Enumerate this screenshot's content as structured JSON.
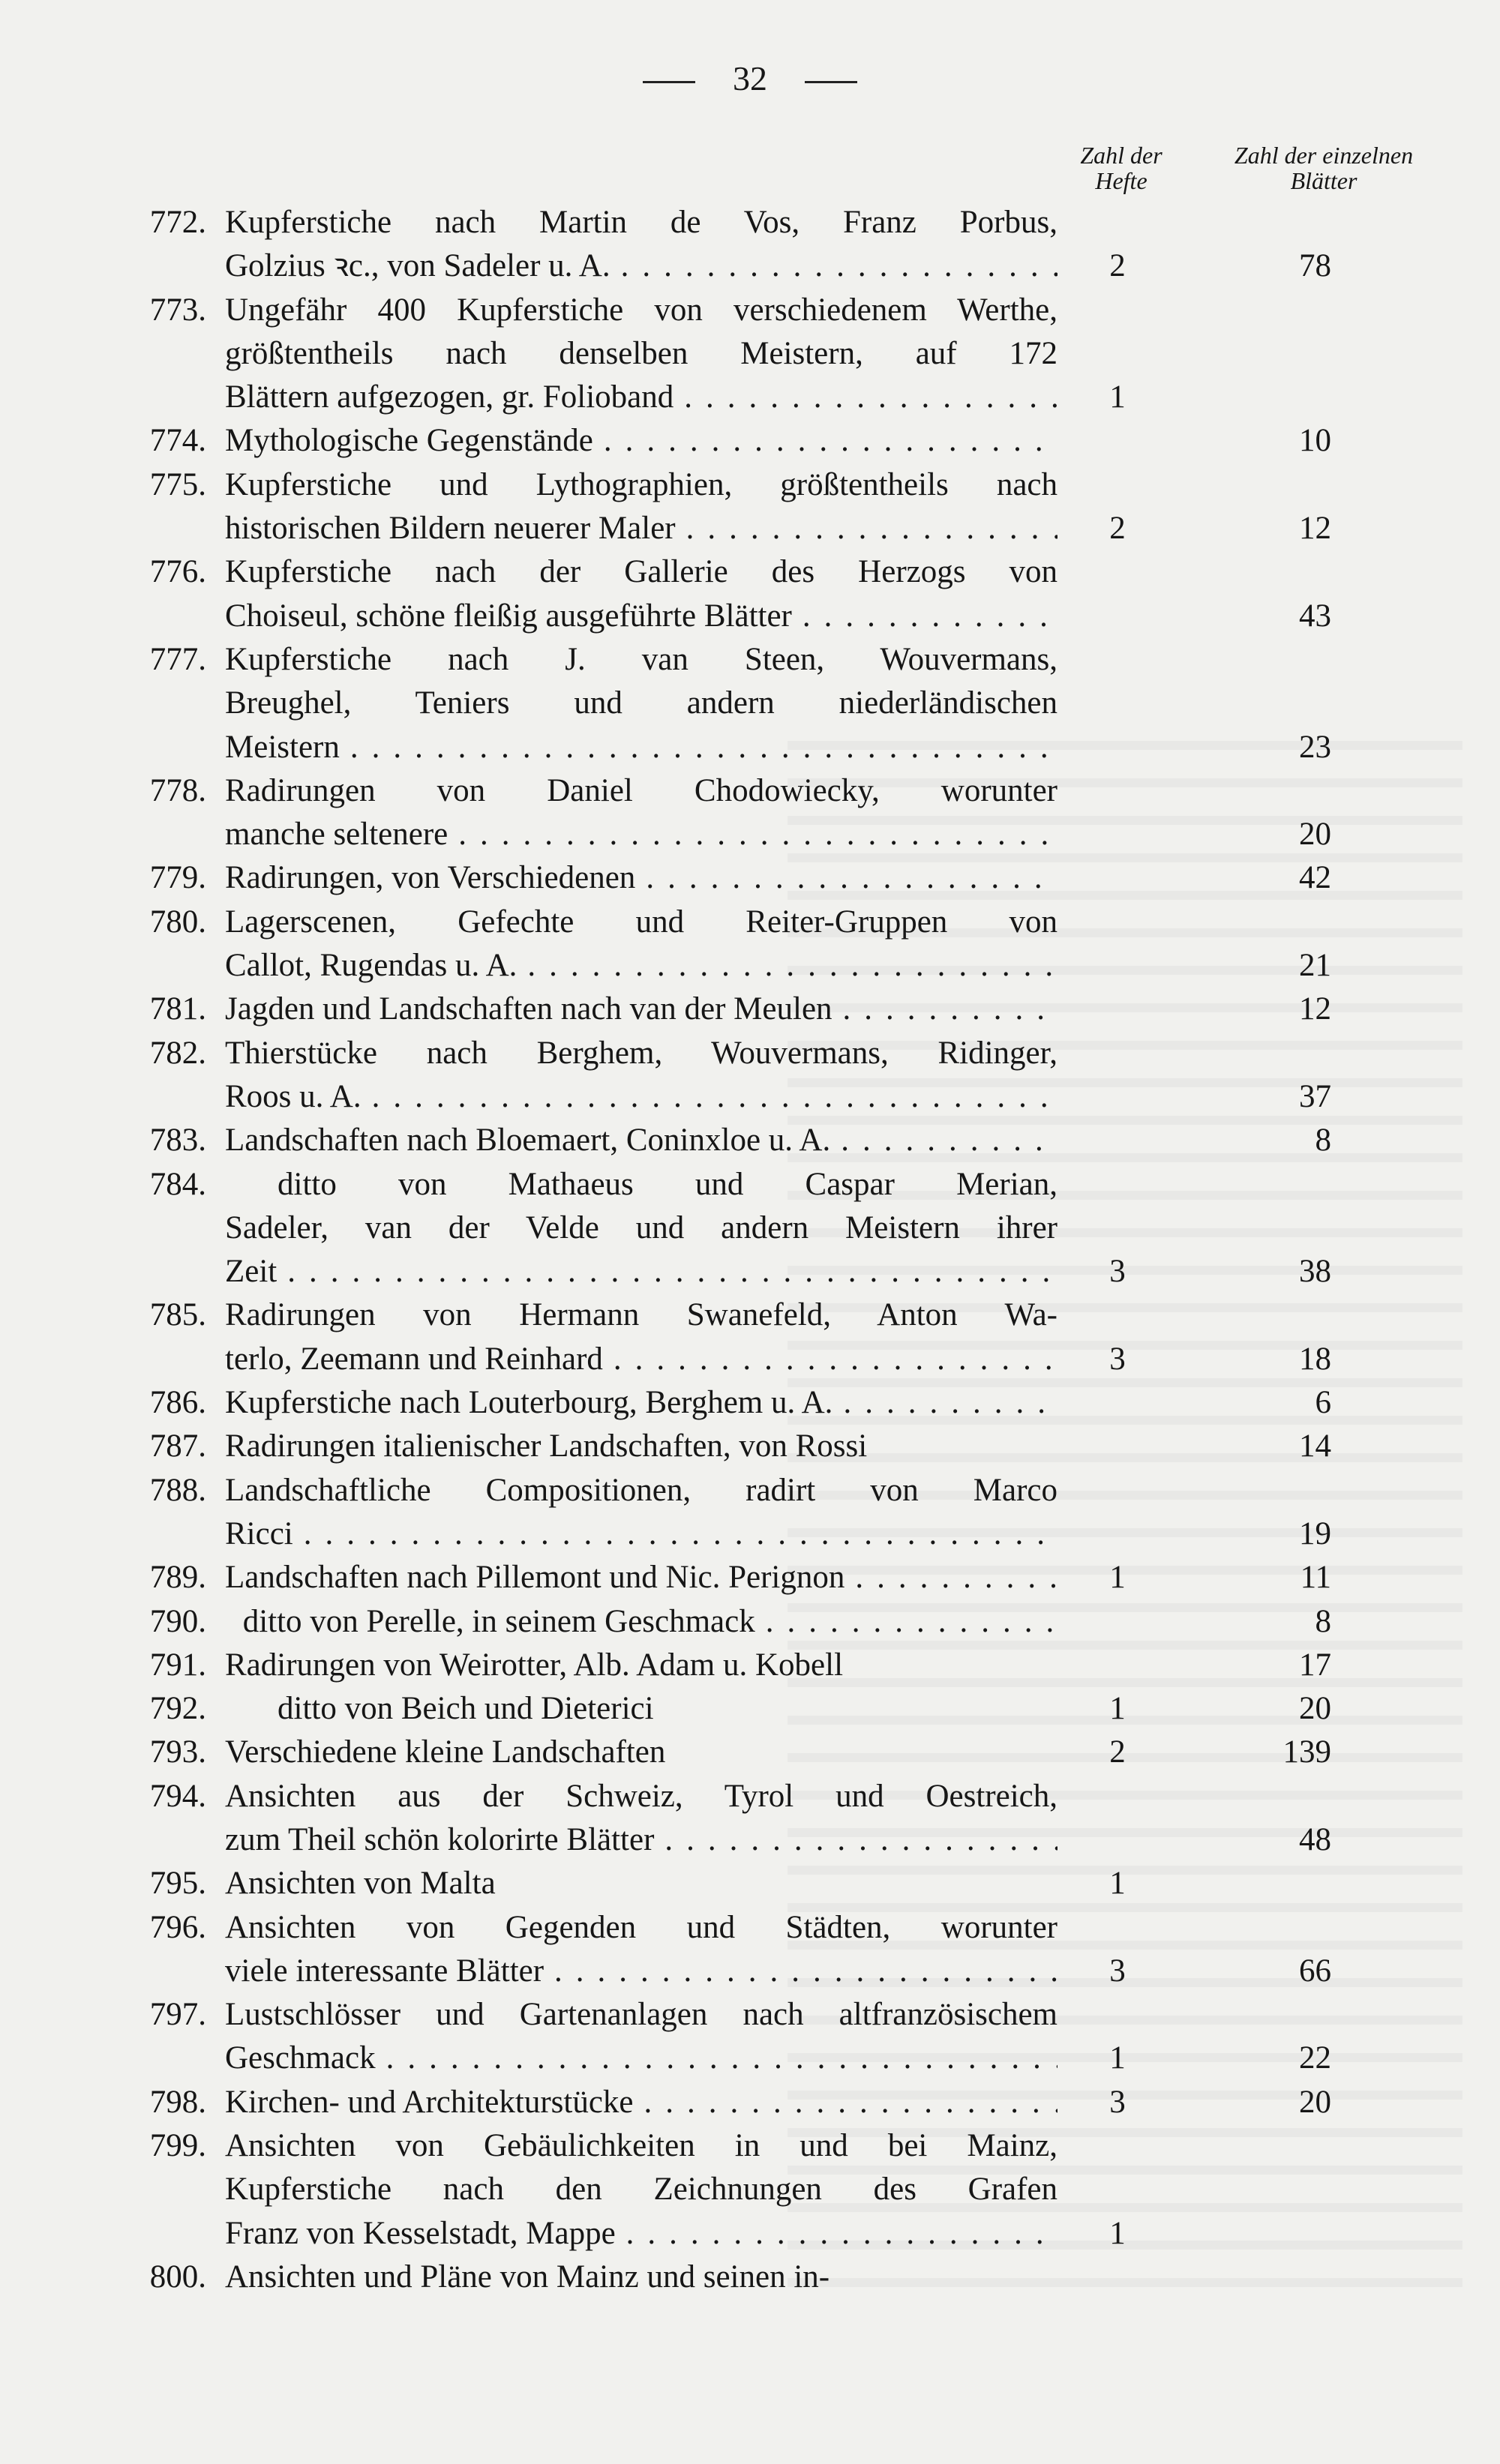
{
  "page": {
    "number": "32"
  },
  "columns": {
    "hefte": "Zahl der Hefte",
    "blaetter": "Zahl der einzelnen Blätter"
  },
  "entries": [
    {
      "num": "772.",
      "lines": [
        {
          "text": "Kupferstiche nach Martin de Vos, Franz Porbus,"
        },
        {
          "text": "Golzius ꝛc., von Sadeler u. A.",
          "dots": true,
          "hefte": "2",
          "blaetter": "78"
        }
      ]
    },
    {
      "num": "773.",
      "lines": [
        {
          "text": "Ungefähr 400 Kupferstiche von verschiedenem Werthe,"
        },
        {
          "text": "größtentheils nach denselben Meistern, auf 172"
        },
        {
          "text": "Blättern aufgezogen, gr. Folioband",
          "dots": true,
          "hefte": "1"
        }
      ]
    },
    {
      "num": "774.",
      "lines": [
        {
          "text": "Mythologische Gegenstände",
          "dots": true,
          "blaetter": "10"
        }
      ]
    },
    {
      "num": "775.",
      "lines": [
        {
          "text": "Kupferstiche und Lythographien, größtentheils nach"
        },
        {
          "text": "historischen Bildern neuerer Maler",
          "dots": true,
          "hefte": "2",
          "blaetter": "12"
        }
      ]
    },
    {
      "num": "776.",
      "lines": [
        {
          "text": "Kupferstiche nach der Gallerie des Herzogs von"
        },
        {
          "text": "Choiseul, schöne fleißig ausgeführte Blätter",
          "dots": true,
          "blaetter": "43"
        }
      ]
    },
    {
      "num": "777.",
      "lines": [
        {
          "text": "Kupferstiche nach J. van Steen, Wouvermans,"
        },
        {
          "text": "Breughel, Teniers und andern niederländischen"
        },
        {
          "text": "Meistern",
          "dots": true,
          "blaetter": "23"
        }
      ]
    },
    {
      "num": "778.",
      "lines": [
        {
          "text": "Radirungen von Daniel Chodowiecky, worunter"
        },
        {
          "text": "manche seltenere",
          "dots": true,
          "blaetter": "20"
        }
      ]
    },
    {
      "num": "779.",
      "lines": [
        {
          "text": "Radirungen, von Verschiedenen",
          "dots": true,
          "blaetter": "42"
        }
      ]
    },
    {
      "num": "780.",
      "lines": [
        {
          "text": "Lagerscenen, Gefechte und Reiter-Gruppen von"
        },
        {
          "text": "Callot, Rugendas u. A.",
          "dots": true,
          "blaetter": "21"
        }
      ]
    },
    {
      "num": "781.",
      "lines": [
        {
          "text": "Jagden und Landschaften nach van der Meulen",
          "dots": true,
          "blaetter": "12"
        }
      ]
    },
    {
      "num": "782.",
      "lines": [
        {
          "text": "Thierstücke nach Berghem, Wouvermans, Ridinger,"
        },
        {
          "text": "Roos u. A.",
          "dots": true,
          "blaetter": "37"
        }
      ]
    },
    {
      "num": "783.",
      "lines": [
        {
          "text": "Landschaften nach Bloemaert, Coninxloe u. A.",
          "dots": true,
          "blaetter": "8"
        }
      ]
    },
    {
      "num": "784.",
      "lines": [
        {
          "text": "ditto      von Mathaeus und Caspar Merian,",
          "indent": true
        },
        {
          "text": "Sadeler, van der Velde und andern Meistern ihrer"
        },
        {
          "text": "Zeit",
          "dots": true,
          "hefte": "3",
          "blaetter": "38"
        }
      ]
    },
    {
      "num": "785.",
      "lines": [
        {
          "text": "Radirungen von Hermann Swanefeld, Anton Wa-"
        },
        {
          "text": "terlo, Zeemann und Reinhard",
          "dots": true,
          "hefte": "3",
          "blaetter": "18"
        }
      ]
    },
    {
      "num": "786.",
      "lines": [
        {
          "text": "Kupferstiche nach Louterbourg, Berghem u. A.",
          "dots": true,
          "blaetter": "6"
        }
      ]
    },
    {
      "num": "787.",
      "lines": [
        {
          "text": "Radirungen italienischer Landschaften, von Rossi",
          "blaetter": "14"
        }
      ]
    },
    {
      "num": "788.",
      "lines": [
        {
          "text": "Landschaftliche Compositionen, radirt von Marco"
        },
        {
          "text": "Ricci",
          "dots": true,
          "blaetter": "19"
        }
      ]
    },
    {
      "num": "789.",
      "lines": [
        {
          "text": "Landschaften nach Pillemont und Nic. Perignon",
          "dots": true,
          "hefte": "1",
          "blaetter": "11"
        }
      ]
    },
    {
      "num": "790.",
      "lines": [
        {
          "text": "ditto      von Perelle, in seinem Geschmack",
          "indent": true,
          "dots": true,
          "blaetter": "8"
        }
      ]
    },
    {
      "num": "791.",
      "lines": [
        {
          "text": "Radirungen von Weirotter, Alb. Adam u. Kobell",
          "blaetter": "17"
        }
      ]
    },
    {
      "num": "792.",
      "lines": [
        {
          "text": "ditto      von Beich und Dieterici",
          "indent": true,
          "hefte": "1",
          "blaetter": "20"
        }
      ]
    },
    {
      "num": "793.",
      "lines": [
        {
          "text": "Verschiedene kleine Landschaften",
          "hefte": "2",
          "blaetter": "139"
        }
      ]
    },
    {
      "num": "794.",
      "lines": [
        {
          "text": "Ansichten aus der Schweiz, Tyrol und Oestreich,"
        },
        {
          "text": "zum Theil schön kolorirte Blätter",
          "dots": true,
          "blaetter": "48"
        }
      ]
    },
    {
      "num": "795.",
      "lines": [
        {
          "text": "Ansichten von Malta",
          "hefte": "1"
        }
      ]
    },
    {
      "num": "796.",
      "lines": [
        {
          "text": "Ansichten von Gegenden und Städten, worunter"
        },
        {
          "text": "viele interessante Blätter",
          "dots": true,
          "hefte": "3",
          "blaetter": "66"
        }
      ]
    },
    {
      "num": "797.",
      "lines": [
        {
          "text": "Lustschlösser und Gartenanlagen nach altfranzösischem"
        },
        {
          "text": "Geschmack",
          "dots": true,
          "hefte": "1",
          "blaetter": "22"
        }
      ]
    },
    {
      "num": "798.",
      "lines": [
        {
          "text": "Kirchen- und Architekturstücke",
          "dots": true,
          "hefte": "3",
          "blaetter": "20"
        }
      ]
    },
    {
      "num": "799.",
      "lines": [
        {
          "text": "Ansichten von Gebäulichkeiten in und bei Mainz,"
        },
        {
          "text": "Kupferstiche nach den Zeichnungen des Grafen"
        },
        {
          "text": "Franz von Kesselstadt, Mappe",
          "dots": true,
          "hefte": "1"
        }
      ]
    },
    {
      "num": "800.",
      "lines": [
        {
          "text": "Ansichten und Pläne von Mainz und seinen in-"
        }
      ]
    }
  ]
}
